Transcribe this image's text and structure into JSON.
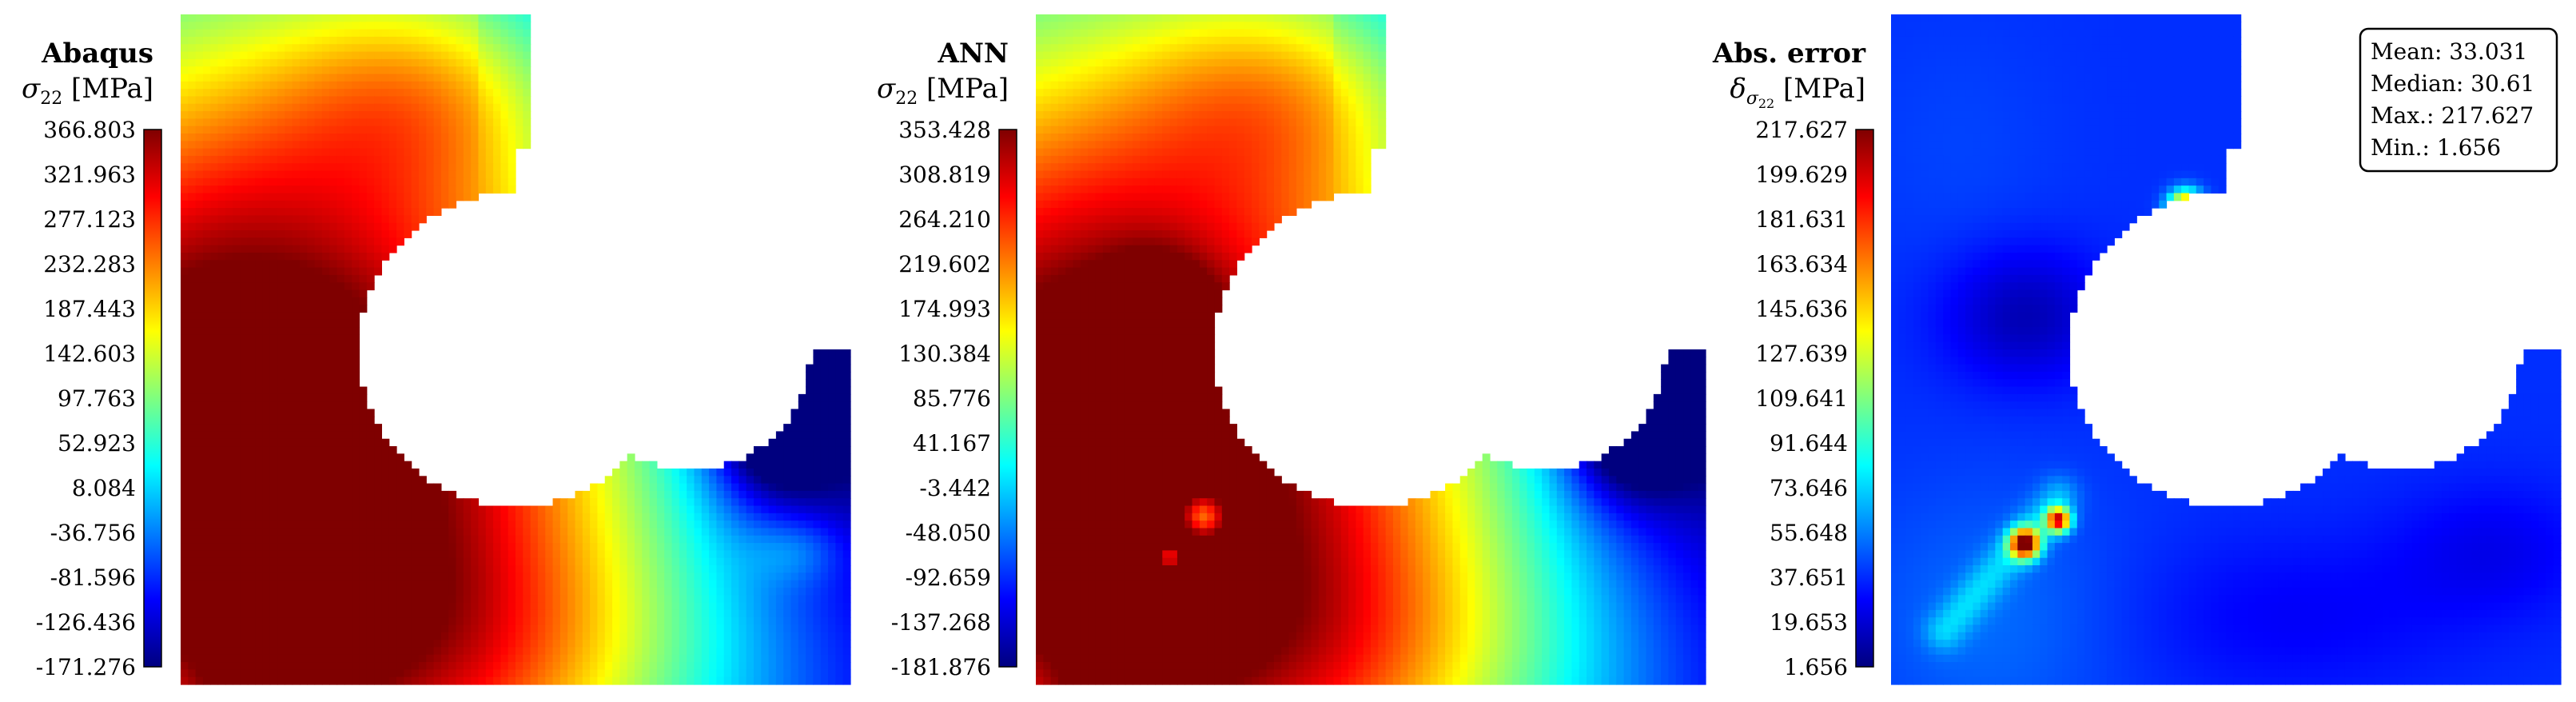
{
  "colormap": [
    "#00007f",
    "#0000ff",
    "#007fff",
    "#00ffff",
    "#7fff7f",
    "#ffff00",
    "#ff7f00",
    "#ff0000",
    "#7f0000"
  ],
  "chart_data": [
    {
      "type": "heatmap",
      "title": "Abaqus",
      "colorbar": {
        "label_symbol": "σ",
        "label_sub": "22",
        "label_unit": " [MPa]",
        "max": 366.803,
        "min": -171.276,
        "ticks": [
          "366.803",
          "321.963",
          "277.123",
          "232.283",
          "187.443",
          "142.603",
          "97.763",
          "52.923",
          "8.084",
          "-36.756",
          "-81.596",
          "-126.436",
          "-171.276"
        ]
      },
      "fields": {
        "base": 0.19,
        "gradient": [
          0.0,
          0.68,
          0.0,
          0.0
        ],
        "blobs": [
          {
            "cx": 0.26,
            "cy": 0.72,
            "rx": 0.55,
            "ry": 0.6,
            "v": 0.6
          },
          {
            "cx": 0.0,
            "cy": 0.5,
            "rx": 0.45,
            "ry": 0.45,
            "v": 0.48
          },
          {
            "cx": 0.05,
            "cy": 0.97,
            "rx": 0.22,
            "ry": 0.28,
            "v": 0.2
          },
          {
            "cx": 0.4,
            "cy": 0.97,
            "rx": 0.42,
            "ry": 0.22,
            "v": 0.2
          },
          {
            "cx": 0.5,
            "cy": 0.55,
            "rx": 0.1,
            "ry": 0.1,
            "v": 0.15
          },
          {
            "cx": 0.36,
            "cy": 0.12,
            "rx": 0.22,
            "ry": 0.16,
            "v": 0.2
          },
          {
            "cx": 0.95,
            "cy": 0.22,
            "rx": 0.22,
            "ry": 0.05,
            "v": -0.27
          },
          {
            "cx": 0.88,
            "cy": 0.62,
            "rx": 0.09,
            "ry": 0.1,
            "v": -0.28
          },
          {
            "cx": 0.95,
            "cy": 0.45,
            "rx": 0.2,
            "ry": 0.35,
            "v": -0.25
          },
          {
            "cx": 0.92,
            "cy": 0.8,
            "rx": 0.07,
            "ry": 0.05,
            "v": 0.1
          }
        ],
        "diag_band": {
          "x0": 0.25,
          "y0": 0.66,
          "x1": -0.05,
          "y1": 1.05,
          "width": 0.05,
          "v": -0.05
        },
        "hotspots": []
      }
    },
    {
      "type": "heatmap",
      "title": "ANN",
      "colorbar": {
        "label_symbol": "σ",
        "label_sub": "22",
        "label_unit": " [MPa]",
        "max": 353.428,
        "min": -181.876,
        "ticks": [
          "353.428",
          "308.819",
          "264.210",
          "219.602",
          "174.993",
          "130.384",
          "85.776",
          "41.167",
          "-3.442",
          "-48.050",
          "-92.659",
          "-137.268",
          "-181.876"
        ]
      },
      "fields": {
        "base": 0.19,
        "gradient": [
          0.0,
          0.68,
          0.0,
          0.0
        ],
        "blobs": [
          {
            "cx": 0.26,
            "cy": 0.72,
            "rx": 0.55,
            "ry": 0.6,
            "v": 0.6
          },
          {
            "cx": 0.0,
            "cy": 0.5,
            "rx": 0.45,
            "ry": 0.45,
            "v": 0.45
          },
          {
            "cx": 0.05,
            "cy": 0.97,
            "rx": 0.22,
            "ry": 0.28,
            "v": 0.2
          },
          {
            "cx": 0.4,
            "cy": 0.97,
            "rx": 0.42,
            "ry": 0.22,
            "v": 0.2
          },
          {
            "cx": 0.36,
            "cy": 0.12,
            "rx": 0.22,
            "ry": 0.16,
            "v": 0.2
          },
          {
            "cx": 0.95,
            "cy": 0.22,
            "rx": 0.22,
            "ry": 0.05,
            "v": -0.27
          },
          {
            "cx": 0.88,
            "cy": 0.62,
            "rx": 0.09,
            "ry": 0.1,
            "v": -0.28
          },
          {
            "cx": 0.95,
            "cy": 0.45,
            "rx": 0.2,
            "ry": 0.35,
            "v": -0.25
          },
          {
            "cx": 0.18,
            "cy": 0.48,
            "rx": 0.08,
            "ry": 0.1,
            "v": 0.3
          },
          {
            "cx": 0.13,
            "cy": 0.6,
            "rx": 0.06,
            "ry": 0.08,
            "v": -0.18
          }
        ],
        "diag_band": {
          "x0": 0.25,
          "y0": 0.66,
          "x1": -0.05,
          "y1": 1.05,
          "width": 0.05,
          "v": -0.05
        },
        "hotspots": [
          {
            "cx": 0.25,
            "cy": 0.75,
            "r": 0.03,
            "v": -0.35
          },
          {
            "cx": 0.2,
            "cy": 0.81,
            "r": 0.02,
            "v": -0.3
          }
        ]
      }
    },
    {
      "type": "heatmap",
      "title": "Abs. error",
      "colorbar": {
        "label_symbol": "δ",
        "label_sub": "σ",
        "label_subsub": "22",
        "label_unit": " [MPa]",
        "max": 217.627,
        "min": 1.656,
        "ticks": [
          "217.627",
          "199.629",
          "181.631",
          "163.634",
          "145.636",
          "127.639",
          "109.641",
          "91.644",
          "73.646",
          "55.648",
          "37.651",
          "19.653",
          "1.656"
        ]
      },
      "stats": {
        "mean": "Mean: 33.031",
        "median": "Median: 30.61",
        "max": "Max.: 217.627",
        "min": "Min.: 1.656"
      },
      "fields": {
        "base": 0.17,
        "gradient": [
          0.0,
          0.0,
          0.0,
          0.0
        ],
        "blobs": [
          {
            "cx": 0.2,
            "cy": 0.45,
            "rx": 0.12,
            "ry": 0.1,
            "v": -0.12
          },
          {
            "cx": 0.15,
            "cy": 0.9,
            "rx": 0.2,
            "ry": 0.2,
            "v": 0.06
          },
          {
            "cx": 0.6,
            "cy": 0.9,
            "rx": 0.25,
            "ry": 0.12,
            "v": -0.05
          },
          {
            "cx": 0.9,
            "cy": 0.8,
            "rx": 0.15,
            "ry": 0.1,
            "v": -0.06
          },
          {
            "cx": 0.1,
            "cy": 0.2,
            "rx": 0.15,
            "ry": 0.2,
            "v": 0.02
          }
        ],
        "diag_band": {
          "x0": 0.25,
          "y0": 0.72,
          "x1": 0.08,
          "y1": 0.92,
          "width": 0.03,
          "v": 0.12
        },
        "hotspots": [
          {
            "cx": 0.2,
            "cy": 0.79,
            "r": 0.022,
            "v": 0.78
          },
          {
            "cx": 0.25,
            "cy": 0.755,
            "r": 0.018,
            "v": 0.7
          },
          {
            "cx": 0.44,
            "cy": 0.29,
            "r": 0.025,
            "v": 0.75
          },
          {
            "cx": 0.82,
            "cy": 0.52,
            "r": 0.03,
            "v": 0.25
          },
          {
            "cx": 0.72,
            "cy": 0.57,
            "r": 0.015,
            "v": 0.2
          }
        ]
      }
    }
  ]
}
